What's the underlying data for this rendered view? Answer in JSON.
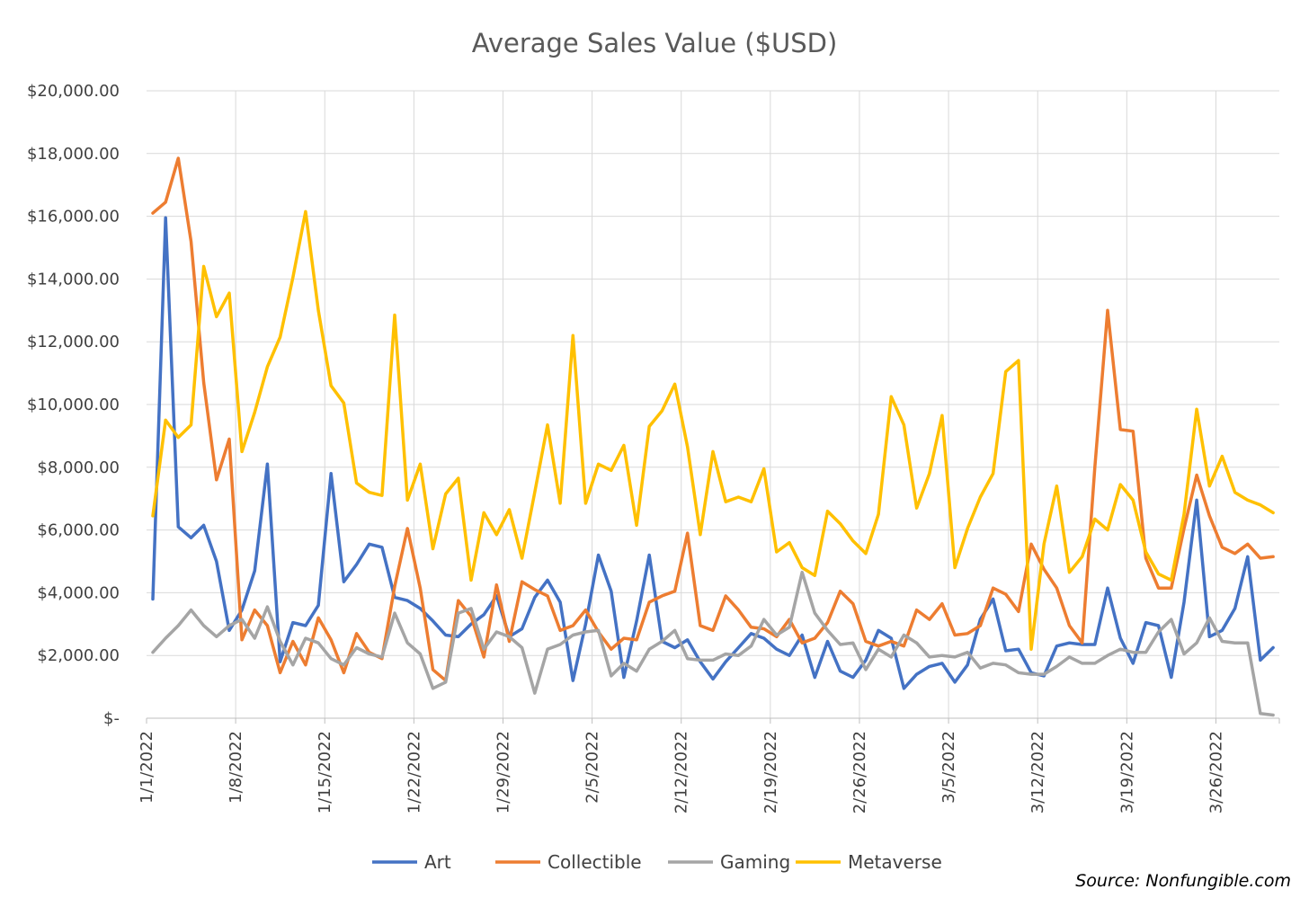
{
  "chart_data": {
    "type": "line",
    "title": "Average Sales Value ($USD)",
    "source": "Source: Nonfungible.com",
    "ylim": [
      0,
      20000
    ],
    "y_ticks": [
      0,
      2000,
      4000,
      6000,
      8000,
      10000,
      12000,
      14000,
      16000,
      18000,
      20000
    ],
    "y_tick_labels": [
      "$-",
      "$2,000.00",
      "$4,000.00",
      "$6,000.00",
      "$8,000.00",
      "$10,000.00",
      "$12,000.00",
      "$14,000.00",
      "$16,000.00",
      "$18,000.00",
      "$20,000.00"
    ],
    "x_tick_labels": [
      "1/1/2022",
      "1/8/2022",
      "1/15/2022",
      "1/22/2022",
      "1/29/2022",
      "2/5/2022",
      "2/12/2022",
      "2/19/2022",
      "2/26/2022",
      "3/5/2022",
      "3/12/2022",
      "3/19/2022",
      "3/26/2022"
    ],
    "x_start": "2022-01-01",
    "x_end": "2022-03-31",
    "grid": true,
    "legend_position": "bottom",
    "series": [
      {
        "name": "Art",
        "color": "#4472c4",
        "values": [
          3800,
          15950,
          6100,
          5750,
          6150,
          5000,
          2800,
          3450,
          4700,
          8100,
          1800,
          3050,
          2950,
          3600,
          7800,
          4350,
          4900,
          5550,
          5450,
          3850,
          3750,
          3500,
          3100,
          2650,
          2600,
          3000,
          3300,
          3900,
          2600,
          2850,
          3850,
          4400,
          3700,
          1200,
          3000,
          5200,
          4050,
          1300,
          3100,
          5200,
          2450,
          2250,
          2500,
          1800,
          1250,
          1800,
          2250,
          2700,
          2550,
          2200,
          2000,
          2650,
          1300,
          2450,
          1500,
          1300,
          1850,
          2800,
          2550,
          950,
          1400,
          1650,
          1750,
          1150,
          1700,
          3150,
          3800,
          2150,
          2200,
          1450,
          1350,
          2300,
          2400,
          2350,
          2350,
          4150,
          2550,
          1750,
          3050,
          2950,
          1300,
          3700,
          6950,
          2600,
          2800,
          3500,
          5150,
          1850,
          2250
        ]
      },
      {
        "name": "Collectible",
        "color": "#ed7d31",
        "values": [
          16100,
          16450,
          17850,
          15200,
          10700,
          7600,
          8900,
          2500,
          3450,
          2950,
          1450,
          2450,
          1700,
          3200,
          2500,
          1450,
          2700,
          2100,
          1900,
          4200,
          6050,
          4150,
          1550,
          1200,
          3750,
          3250,
          1950,
          4250,
          2450,
          4350,
          4100,
          3900,
          2800,
          2950,
          3450,
          2750,
          2200,
          2550,
          2500,
          3700,
          3900,
          4050,
          5900,
          2950,
          2800,
          3900,
          3450,
          2900,
          2850,
          2600,
          3150,
          2400,
          2550,
          3050,
          4050,
          3650,
          2450,
          2300,
          2450,
          2300,
          3450,
          3150,
          3650,
          2650,
          2700,
          2950,
          4150,
          3950,
          3400,
          5550,
          4750,
          4150,
          2950,
          2400,
          8000,
          13000,
          9200,
          9150,
          5100,
          4150,
          4150,
          6050,
          7750,
          6450,
          5450,
          5250,
          5550,
          5100,
          5150
        ]
      },
      {
        "name": "Gaming",
        "color": "#a5a5a5",
        "values": [
          2100,
          2550,
          2950,
          3450,
          2950,
          2600,
          2950,
          3150,
          2550,
          3550,
          2450,
          1700,
          2550,
          2400,
          1900,
          1700,
          2250,
          2050,
          1950,
          3350,
          2400,
          2050,
          950,
          1150,
          3350,
          3500,
          2200,
          2750,
          2600,
          2250,
          800,
          2200,
          2350,
          2650,
          2750,
          2800,
          1350,
          1750,
          1500,
          2200,
          2450,
          2800,
          1900,
          1850,
          1850,
          2050,
          2000,
          2300,
          3150,
          2650,
          2900,
          4650,
          3350,
          2800,
          2350,
          2400,
          1550,
          2200,
          1950,
          2650,
          2400,
          1950,
          2000,
          1950,
          2100,
          1600,
          1750,
          1700,
          1450,
          1400,
          1400,
          1650,
          1950,
          1750,
          1750,
          2000,
          2200,
          2100,
          2100,
          2750,
          3150,
          2050,
          2400,
          3200,
          2450,
          2400,
          2400,
          150,
          100
        ]
      },
      {
        "name": "Metaverse",
        "color": "#ffc000",
        "values": [
          6450,
          9500,
          8950,
          9350,
          14400,
          12800,
          13550,
          8500,
          9750,
          11200,
          12150,
          14050,
          16150,
          13000,
          10600,
          10050,
          7500,
          7200,
          7100,
          12850,
          6950,
          8100,
          5400,
          7150,
          7650,
          4400,
          6550,
          5850,
          6650,
          5100,
          7200,
          9350,
          6850,
          12200,
          6850,
          8100,
          7900,
          8700,
          6150,
          9300,
          9800,
          10650,
          8650,
          5850,
          8500,
          6900,
          7050,
          6900,
          7950,
          5300,
          5600,
          4800,
          4550,
          6600,
          6200,
          5650,
          5250,
          6500,
          10250,
          9350,
          6700,
          7800,
          9650,
          4800,
          6050,
          7050,
          7800,
          11050,
          11400,
          2200,
          5550,
          7400,
          4650,
          5150,
          6350,
          6000,
          7450,
          6950,
          5300,
          4600,
          4400,
          6500,
          9850,
          7400,
          8350,
          7200,
          6950,
          6800,
          6550
        ]
      }
    ]
  }
}
